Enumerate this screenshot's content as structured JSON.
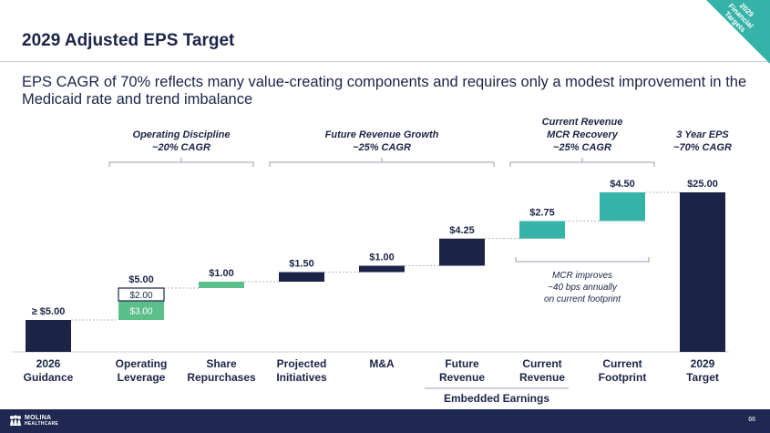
{
  "page": {
    "title": "2029 Adjusted EPS Target",
    "subtitle": "EPS CAGR of 70% reflects many value-creating components and requires only a modest improvement in the Medicaid rate and trend imbalance",
    "corner_tag": [
      "2029",
      "Financial",
      "Targets"
    ],
    "page_number": "66",
    "logo_text": [
      "MOLINA",
      "HEALTHCARE"
    ],
    "logo_icon": "molina-logo-icon"
  },
  "colors": {
    "navy": "#1b2447",
    "green": "#5bbf8a",
    "teal": "#36b3a8",
    "footer": "#1f2850"
  },
  "chart_data": {
    "type": "bar",
    "subtype": "waterfall",
    "categories": [
      "2026 Guidance",
      "Operating Leverage",
      "Share Repurchases",
      "Projected Initiatives",
      "M&A",
      "Future Revenue",
      "Current Revenue",
      "Current Footprint",
      "2029 Target"
    ],
    "bars": [
      {
        "category": "2026 Guidance",
        "start": 0,
        "value": 5.0,
        "label": "≥ $5.00",
        "color": "navy",
        "kind": "total"
      },
      {
        "category": "Operating Leverage",
        "start": 5.0,
        "value": 3.0,
        "inner_label": "$3.00",
        "color": "green",
        "kind": "increment"
      },
      {
        "category": "Operating Leverage",
        "start": 8.0,
        "value": 2.0,
        "inner_label": "$2.00",
        "color": "outline",
        "kind": "increment",
        "label": "$5.00"
      },
      {
        "category": "Share Repurchases",
        "start": 10.0,
        "value": 1.0,
        "label": "$1.00",
        "color": "green",
        "kind": "increment"
      },
      {
        "category": "Projected Initiatives",
        "start": 11.0,
        "value": 1.5,
        "label": "$1.50",
        "color": "navy",
        "kind": "increment"
      },
      {
        "category": "M&A",
        "start": 12.5,
        "value": 1.0,
        "label": "$1.00",
        "color": "navy",
        "kind": "increment"
      },
      {
        "category": "Future Revenue",
        "start": 13.5,
        "value": 4.25,
        "label": "$4.25",
        "color": "navy",
        "kind": "increment"
      },
      {
        "category": "Current Revenue",
        "start": 17.75,
        "value": 2.75,
        "label": "$2.75",
        "color": "teal",
        "kind": "increment"
      },
      {
        "category": "Current Footprint",
        "start": 20.5,
        "value": 4.5,
        "label": "$4.50",
        "color": "teal",
        "kind": "increment"
      },
      {
        "category": "2029 Target",
        "start": 0,
        "value": 25.0,
        "label": "$25.00",
        "color": "navy",
        "kind": "total"
      }
    ],
    "group_headers": [
      {
        "lines": [
          "Operating Discipline",
          "~20% CAGR"
        ],
        "from": 1,
        "to": 2
      },
      {
        "lines": [
          "Future Revenue Growth",
          "~25% CAGR"
        ],
        "from": 3,
        "to": 5
      },
      {
        "lines": [
          "Current Revenue",
          "MCR Recovery",
          "~25% CAGR"
        ],
        "from": 6,
        "to": 7
      },
      {
        "lines": [
          "3 Year EPS",
          "~70% CAGR"
        ],
        "from": 8,
        "to": 8
      }
    ],
    "annotation": [
      "MCR improves",
      "~40 bps annually",
      "on current footprint"
    ],
    "bottom_group": {
      "label": "Embedded Earnings",
      "from": 5,
      "to": 6
    },
    "category_labels": [
      [
        "2026",
        "Guidance"
      ],
      [
        "Operating",
        "Leverage"
      ],
      [
        "Share",
        "Repurchases"
      ],
      [
        "Projected",
        "Initiatives"
      ],
      [
        "M&A"
      ],
      [
        "Future",
        "Revenue"
      ],
      [
        "Current",
        "Revenue"
      ],
      [
        "Current",
        "Footprint"
      ],
      [
        "2029",
        "Target"
      ]
    ],
    "ylim": [
      0,
      25
    ],
    "grid": false,
    "legend": "none"
  }
}
